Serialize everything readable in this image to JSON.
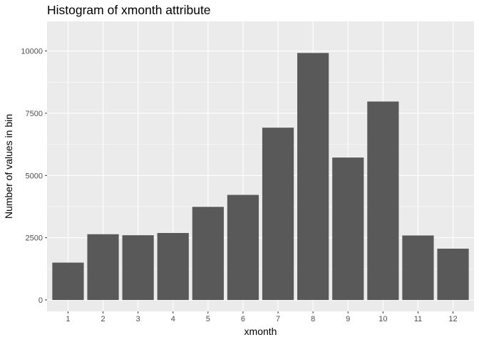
{
  "chart_data": {
    "type": "bar",
    "title": "Histogram of xmonth attribute",
    "xlabel": "xmonth",
    "ylabel": "Number of values in bin",
    "categories": [
      "1",
      "2",
      "3",
      "4",
      "5",
      "6",
      "7",
      "8",
      "9",
      "10",
      "11",
      "12"
    ],
    "values": [
      1500,
      2640,
      2600,
      2690,
      3740,
      4220,
      6920,
      9920,
      5720,
      7970,
      2590,
      2060
    ],
    "ylim": [
      0,
      10800
    ],
    "yticks": [
      0,
      2500,
      5000,
      7500,
      10000
    ],
    "ytick_labels": [
      "0",
      "2500",
      "5000",
      "7500",
      "10000"
    ],
    "grid": true,
    "colors": {
      "bar": "#595959",
      "panel": "#ebebeb",
      "grid": "#ffffff"
    }
  }
}
